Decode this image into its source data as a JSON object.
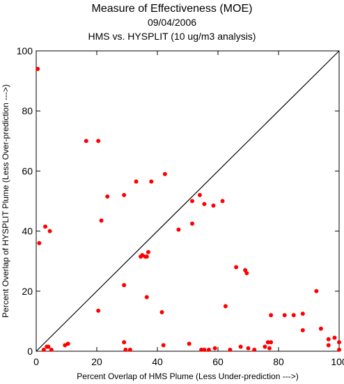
{
  "chart_data": {
    "type": "scatter",
    "title": "Measure of Effectiveness (MOE)",
    "subtitle_date": "09/04/2006",
    "subtitle_analysis": "HMS vs. HYSPLIT  (10 ug/m3 analysis)",
    "xlabel": "Percent Overlap of HMS Plume (Less Under-prediction --->)",
    "ylabel": "Percent Overlap of HYSPLIT Plume (Less Over-prediction --->)",
    "xlim": [
      0,
      100
    ],
    "ylim": [
      0,
      100
    ],
    "xticks": [
      0,
      20,
      40,
      60,
      80,
      100
    ],
    "yticks": [
      0,
      20,
      40,
      60,
      80,
      100
    ],
    "reference_line": "diagonal y = x",
    "point_color": "#ff0000",
    "points": [
      [
        0.5,
        94
      ],
      [
        1,
        36
      ],
      [
        3,
        41.5
      ],
      [
        4.5,
        40
      ],
      [
        2.5,
        0.5
      ],
      [
        3.5,
        1.5
      ],
      [
        4,
        1.5
      ],
      [
        5,
        0.5
      ],
      [
        9.5,
        2
      ],
      [
        10.5,
        2.5
      ],
      [
        16.5,
        70
      ],
      [
        20.5,
        70
      ],
      [
        21.5,
        43.5
      ],
      [
        23.5,
        51.5
      ],
      [
        20.5,
        13.5
      ],
      [
        29,
        52
      ],
      [
        33,
        56.5
      ],
      [
        38,
        56.5
      ],
      [
        42.5,
        59
      ],
      [
        29,
        22
      ],
      [
        29,
        3
      ],
      [
        29.5,
        0.5
      ],
      [
        31,
        0.5
      ],
      [
        34.5,
        31.5
      ],
      [
        35,
        32
      ],
      [
        36,
        31.5
      ],
      [
        36.5,
        31.5
      ],
      [
        37,
        33
      ],
      [
        36.5,
        18
      ],
      [
        41.5,
        13
      ],
      [
        42,
        2
      ],
      [
        47,
        40.5
      ],
      [
        50.5,
        2.5
      ],
      [
        51.5,
        50
      ],
      [
        51.5,
        42.5
      ],
      [
        54,
        52
      ],
      [
        54.5,
        0.5
      ],
      [
        55.5,
        49
      ],
      [
        55.5,
        0.5
      ],
      [
        57,
        0.5
      ],
      [
        58.5,
        48.5
      ],
      [
        59,
        1
      ],
      [
        61.5,
        50
      ],
      [
        62.5,
        15
      ],
      [
        64,
        0.5
      ],
      [
        66,
        28
      ],
      [
        67.5,
        1.5
      ],
      [
        69,
        27
      ],
      [
        69.5,
        26
      ],
      [
        70,
        1
      ],
      [
        72,
        0.5
      ],
      [
        75.5,
        1.5
      ],
      [
        76.5,
        3
      ],
      [
        77,
        1
      ],
      [
        77.5,
        3
      ],
      [
        77.5,
        12
      ],
      [
        82,
        12
      ],
      [
        85,
        12
      ],
      [
        88,
        12.5
      ],
      [
        88,
        7
      ],
      [
        92.5,
        20
      ],
      [
        94,
        7.5
      ],
      [
        96.5,
        4
      ],
      [
        96.5,
        2
      ],
      [
        98.5,
        4.5
      ],
      [
        100,
        3
      ],
      [
        100,
        0.5
      ]
    ]
  }
}
